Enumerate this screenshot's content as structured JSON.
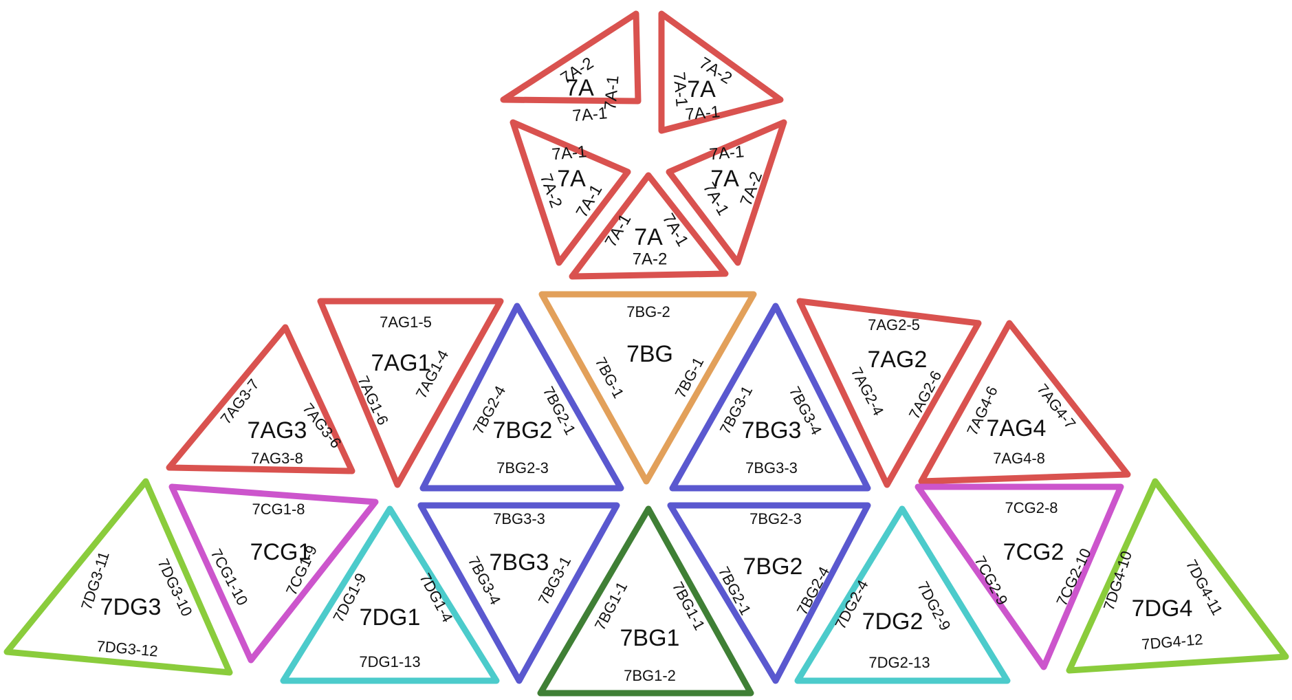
{
  "colors": {
    "red": "#d9524f",
    "orange": "#e2a05a",
    "blue": "#5a58cf",
    "magenta": "#cc55cc",
    "cyan": "#4ccbcb",
    "lightgreen": "#8acc3c",
    "darkgreen": "#3f7f35"
  },
  "panels": [
    {
      "id": "7A-top-left",
      "color": "red",
      "labels": [
        "7A",
        "7A-2",
        "7A-1",
        "7A-1"
      ]
    },
    {
      "id": "7A-top-right",
      "color": "red",
      "labels": [
        "7A",
        "7A-2",
        "7A-1",
        "7A-1"
      ]
    },
    {
      "id": "7A-left",
      "color": "red",
      "labels": [
        "7A",
        "7A-1",
        "7A-2",
        "7A-1"
      ]
    },
    {
      "id": "7A-right",
      "color": "red",
      "labels": [
        "7A",
        "7A-1",
        "7A-1",
        "7A-2"
      ]
    },
    {
      "id": "7A-bottom",
      "color": "red",
      "labels": [
        "7A",
        "7A-1",
        "7A-1",
        "7A-2"
      ]
    },
    {
      "id": "7AG3",
      "color": "red",
      "labels": [
        "7AG3",
        "7AG3-7",
        "7AG3-6",
        "7AG3-8"
      ]
    },
    {
      "id": "7AG1",
      "color": "red",
      "labels": [
        "7AG1",
        "7AG1-5",
        "7AG1-6",
        "7AG1-4"
      ]
    },
    {
      "id": "7BG2-upper",
      "color": "blue",
      "labels": [
        "7BG2",
        "7BG2-4",
        "7BG2-1",
        "7BG2-3"
      ]
    },
    {
      "id": "7BG",
      "color": "orange",
      "labels": [
        "7BG",
        "7BG-2",
        "7BG-1",
        "7BG-1"
      ]
    },
    {
      "id": "7BG3-upper",
      "color": "blue",
      "labels": [
        "7BG3",
        "7BG3-1",
        "7BG3-4",
        "7BG3-3"
      ]
    },
    {
      "id": "7AG2",
      "color": "red",
      "labels": [
        "7AG2",
        "7AG2-5",
        "7AG2-4",
        "7AG2-6"
      ]
    },
    {
      "id": "7AG4",
      "color": "red",
      "labels": [
        "7AG4",
        "7AG4-6",
        "7AG4-7",
        "7AG4-8"
      ]
    },
    {
      "id": "7DG3",
      "color": "lightgreen",
      "labels": [
        "7DG3",
        "7DG3-11",
        "7DG3-10",
        "7DG3-12"
      ]
    },
    {
      "id": "7CG1",
      "color": "magenta",
      "labels": [
        "7CG1",
        "7CG1-8",
        "7CG1-10",
        "7CG1-9"
      ]
    },
    {
      "id": "7DG1",
      "color": "cyan",
      "labels": [
        "7DG1",
        "7DG1-9",
        "7DG1-4",
        "7DG1-13"
      ]
    },
    {
      "id": "7BG3-lower",
      "color": "blue",
      "labels": [
        "7BG3",
        "7BG3-3",
        "7BG3-4",
        "7BG3-1"
      ]
    },
    {
      "id": "7BG1",
      "color": "darkgreen",
      "labels": [
        "7BG1",
        "7BG1-1",
        "7BG1-1",
        "7BG1-2"
      ]
    },
    {
      "id": "7BG2-lower",
      "color": "blue",
      "labels": [
        "7BG2",
        "7BG2-3",
        "7BG2-1",
        "7BG2-4"
      ]
    },
    {
      "id": "7DG2",
      "color": "cyan",
      "labels": [
        "7DG2",
        "7DG2-4",
        "7DG2-9",
        "7DG2-13"
      ]
    },
    {
      "id": "7CG2",
      "color": "magenta",
      "labels": [
        "7CG2",
        "7CG2-8",
        "7CG2-9",
        "7CG2-10"
      ]
    },
    {
      "id": "7DG4",
      "color": "lightgreen",
      "labels": [
        "7DG4",
        "7DG4-10",
        "7DG4-11",
        "7DG4-12"
      ]
    }
  ]
}
